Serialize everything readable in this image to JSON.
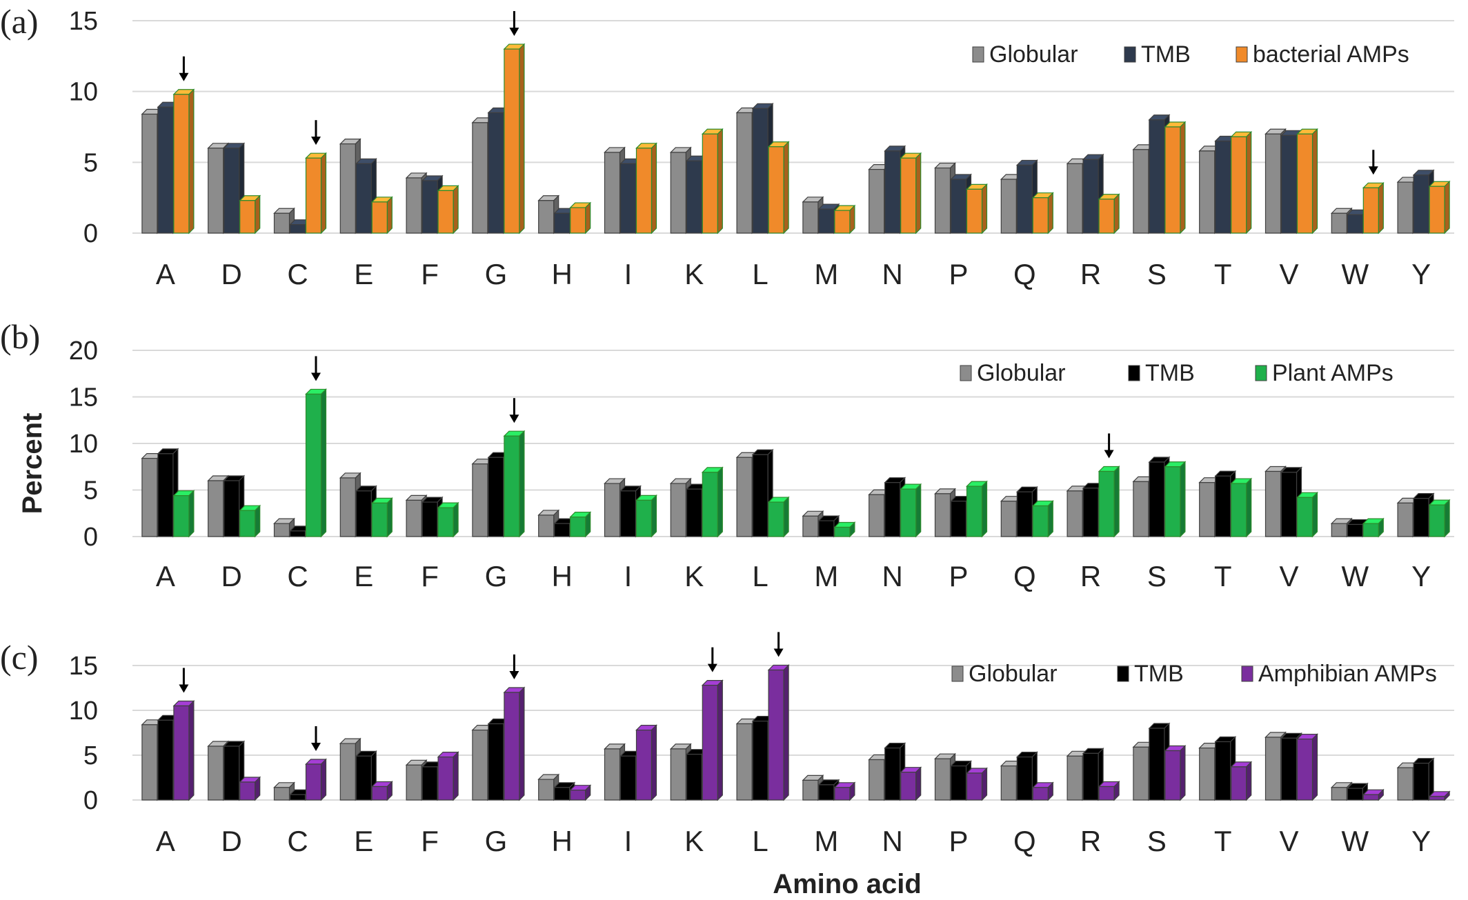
{
  "figure": {
    "ylabel": "Percent",
    "xlabel": "Amino acid"
  },
  "chart_data": [
    {
      "type": "bar",
      "panel_label": "(a)",
      "categories": [
        "A",
        "D",
        "C",
        "E",
        "F",
        "G",
        "H",
        "I",
        "K",
        "L",
        "M",
        "N",
        "P",
        "Q",
        "R",
        "S",
        "T",
        "V",
        "W",
        "Y"
      ],
      "ylim": [
        0,
        15
      ],
      "yticks": [
        0,
        5,
        10,
        15
      ],
      "grid": true,
      "legend_position": "top-right",
      "series": [
        {
          "name": "Globular",
          "color": "#8c8c8c",
          "values": [
            8.4,
            6.0,
            1.4,
            6.3,
            3.9,
            7.8,
            2.3,
            5.7,
            5.7,
            8.5,
            2.2,
            4.5,
            4.6,
            3.8,
            4.9,
            5.9,
            5.8,
            7.0,
            1.4,
            3.6
          ]
        },
        {
          "name": "TMB",
          "color": "#2e3a4d",
          "values": [
            8.9,
            6.0,
            0.6,
            4.9,
            3.7,
            8.5,
            1.4,
            4.9,
            5.1,
            8.8,
            1.7,
            5.8,
            3.8,
            4.8,
            5.2,
            8.0,
            6.5,
            6.9,
            1.3,
            4.1
          ]
        },
        {
          "name": "bacterial AMPs",
          "color": "#f08a2a",
          "values": [
            9.8,
            2.3,
            5.3,
            2.2,
            3.0,
            13.0,
            1.8,
            6.0,
            7.0,
            6.1,
            1.6,
            5.3,
            3.1,
            2.5,
            2.4,
            7.5,
            6.8,
            7.0,
            3.2,
            3.3
          ]
        }
      ],
      "arrows_at": [
        "A",
        "C",
        "G",
        "W"
      ]
    },
    {
      "type": "bar",
      "panel_label": "(b)",
      "categories": [
        "A",
        "D",
        "C",
        "E",
        "F",
        "G",
        "H",
        "I",
        "K",
        "L",
        "M",
        "N",
        "P",
        "Q",
        "R",
        "S",
        "T",
        "V",
        "W",
        "Y"
      ],
      "ylim": [
        0,
        20
      ],
      "yticks": [
        0,
        5,
        10,
        15,
        20
      ],
      "grid": true,
      "legend_position": "top-right",
      "series": [
        {
          "name": "Globular",
          "color": "#8c8c8c",
          "values": [
            8.4,
            6.0,
            1.4,
            6.3,
            3.9,
            7.8,
            2.3,
            5.7,
            5.7,
            8.5,
            2.2,
            4.5,
            4.6,
            3.8,
            4.9,
            5.9,
            5.8,
            7.0,
            1.4,
            3.6
          ]
        },
        {
          "name": "TMB",
          "color": "#000000",
          "values": [
            8.9,
            6.0,
            0.6,
            4.9,
            3.7,
            8.5,
            1.4,
            4.9,
            5.1,
            8.8,
            1.7,
            5.8,
            3.8,
            4.8,
            5.2,
            8.0,
            6.5,
            6.9,
            1.3,
            4.1
          ]
        },
        {
          "name": "Plant AMPs",
          "color": "#1fb04b",
          "values": [
            4.4,
            2.8,
            15.3,
            3.6,
            3.1,
            10.8,
            2.1,
            3.9,
            6.9,
            3.7,
            1.0,
            5.1,
            5.4,
            3.3,
            7.0,
            7.5,
            5.7,
            4.2,
            1.4,
            3.4
          ]
        }
      ],
      "arrows_at": [
        "C",
        "G",
        "R"
      ]
    },
    {
      "type": "bar",
      "panel_label": "(c)",
      "categories": [
        "A",
        "D",
        "C",
        "E",
        "F",
        "G",
        "H",
        "I",
        "K",
        "L",
        "M",
        "N",
        "P",
        "Q",
        "R",
        "S",
        "T",
        "V",
        "W",
        "Y"
      ],
      "ylim": [
        0,
        15
      ],
      "yticks": [
        0,
        5,
        10,
        15
      ],
      "grid": true,
      "legend_position": "top-right",
      "series": [
        {
          "name": "Globular",
          "color": "#8c8c8c",
          "values": [
            8.4,
            6.0,
            1.4,
            6.3,
            3.9,
            7.8,
            2.3,
            5.7,
            5.7,
            8.5,
            2.2,
            4.5,
            4.6,
            3.8,
            4.9,
            5.9,
            5.8,
            7.0,
            1.4,
            3.6
          ]
        },
        {
          "name": "TMB",
          "color": "#000000",
          "values": [
            8.9,
            6.0,
            0.6,
            4.9,
            3.7,
            8.5,
            1.4,
            4.9,
            5.1,
            8.8,
            1.7,
            5.8,
            3.8,
            4.8,
            5.2,
            8.0,
            6.5,
            6.9,
            1.3,
            4.1
          ]
        },
        {
          "name": "Amphibian AMPs",
          "color": "#7a2e9e",
          "values": [
            10.5,
            2.0,
            4.0,
            1.5,
            4.8,
            12.0,
            1.1,
            7.8,
            12.8,
            14.5,
            1.4,
            3.1,
            3.0,
            1.4,
            1.5,
            5.5,
            3.7,
            6.8,
            0.6,
            0.4
          ]
        }
      ],
      "arrows_at": [
        "A",
        "C",
        "G",
        "K",
        "L"
      ]
    }
  ]
}
